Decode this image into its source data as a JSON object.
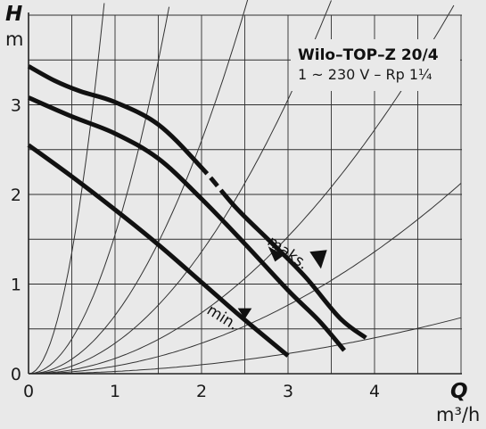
{
  "chart_data": {
    "type": "line",
    "title": "Wilo–TOP–Z 20/4",
    "subtitle": "1 ~ 230 V – Rp 1¼",
    "x_symbol": "Q",
    "x_unit": "m³/h",
    "y_symbol": "H",
    "y_unit": "m",
    "xlim": [
      0,
      5
    ],
    "ylim": [
      0,
      4
    ],
    "x_ticks": [
      "0",
      "1",
      "2",
      "3",
      "4"
    ],
    "y_ticks": [
      "0",
      "1",
      "2",
      "3"
    ],
    "grid": true,
    "series": [
      {
        "role": "max",
        "points": [
          [
            0,
            3.43
          ],
          [
            0.3,
            3.27
          ],
          [
            0.6,
            3.15
          ],
          [
            1.0,
            3.03
          ],
          [
            1.5,
            2.78
          ],
          [
            2.0,
            2.3
          ],
          [
            2.4,
            1.85
          ],
          [
            2.8,
            1.47
          ],
          [
            3.2,
            1.08
          ],
          [
            3.6,
            0.62
          ],
          [
            3.9,
            0.4
          ]
        ]
      },
      {
        "role": "mid",
        "points": [
          [
            0,
            3.08
          ],
          [
            0.5,
            2.87
          ],
          [
            1.0,
            2.68
          ],
          [
            1.5,
            2.4
          ],
          [
            2.0,
            1.95
          ],
          [
            2.5,
            1.45
          ],
          [
            3.0,
            0.93
          ],
          [
            3.35,
            0.6
          ],
          [
            3.65,
            0.26
          ]
        ]
      },
      {
        "role": "min",
        "points": [
          [
            0,
            2.55
          ],
          [
            0.5,
            2.2
          ],
          [
            1.0,
            1.83
          ],
          [
            1.5,
            1.44
          ],
          [
            2.0,
            1.02
          ],
          [
            2.5,
            0.6
          ],
          [
            3.0,
            0.2
          ]
        ]
      }
    ],
    "annotations": [
      {
        "text": "maks.",
        "at": [
          2.75,
          1.45
        ]
      },
      {
        "text": "min.",
        "at": [
          2.05,
          0.68
        ]
      }
    ],
    "system_curve_coefficients": [
      5.4,
      1.55,
      0.65,
      0.34,
      0.17,
      0.085,
      0.025
    ]
  }
}
